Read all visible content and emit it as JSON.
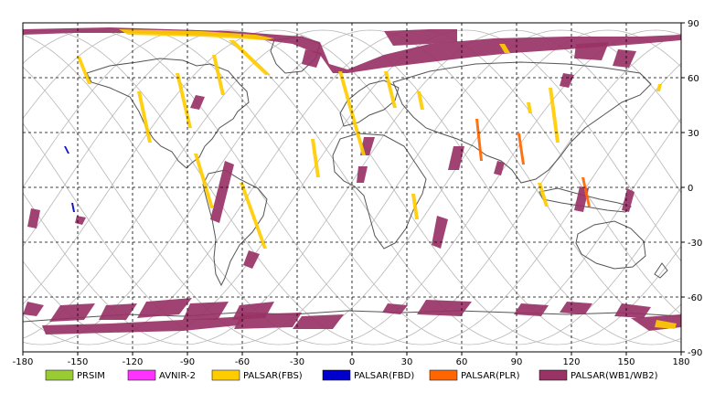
{
  "map": {
    "x_ticks": [
      "-180",
      "-150",
      "-120",
      "-90",
      "-60",
      "-30",
      "0",
      "30",
      "60",
      "90",
      "120",
      "150",
      "180"
    ],
    "y_ticks": [
      "90",
      "60",
      "30",
      "0",
      "-30",
      "-60",
      "-90"
    ],
    "lon_range": [
      -180,
      180
    ],
    "lat_range": [
      -90,
      90
    ],
    "grid": true,
    "grid_style": "dashed",
    "background_color": "#ffffff",
    "coastline_color": "#555555",
    "orbit_track_color": "#b8b8b8"
  },
  "legend": {
    "placement": "bottom",
    "items": [
      {
        "label": "PRSIM",
        "color": "#99cc33"
      },
      {
        "label": "AVNIR-2",
        "color": "#ff33ff"
      },
      {
        "label": "PALSAR(FBS)",
        "color": "#ffcc00"
      },
      {
        "label": "PALSAR(FBD)",
        "color": "#0000cc"
      },
      {
        "label": "PALSAR(PLR)",
        "color": "#ff6600"
      },
      {
        "label": "PALSAR(WB1/WB2)",
        "color": "#993366"
      }
    ]
  }
}
